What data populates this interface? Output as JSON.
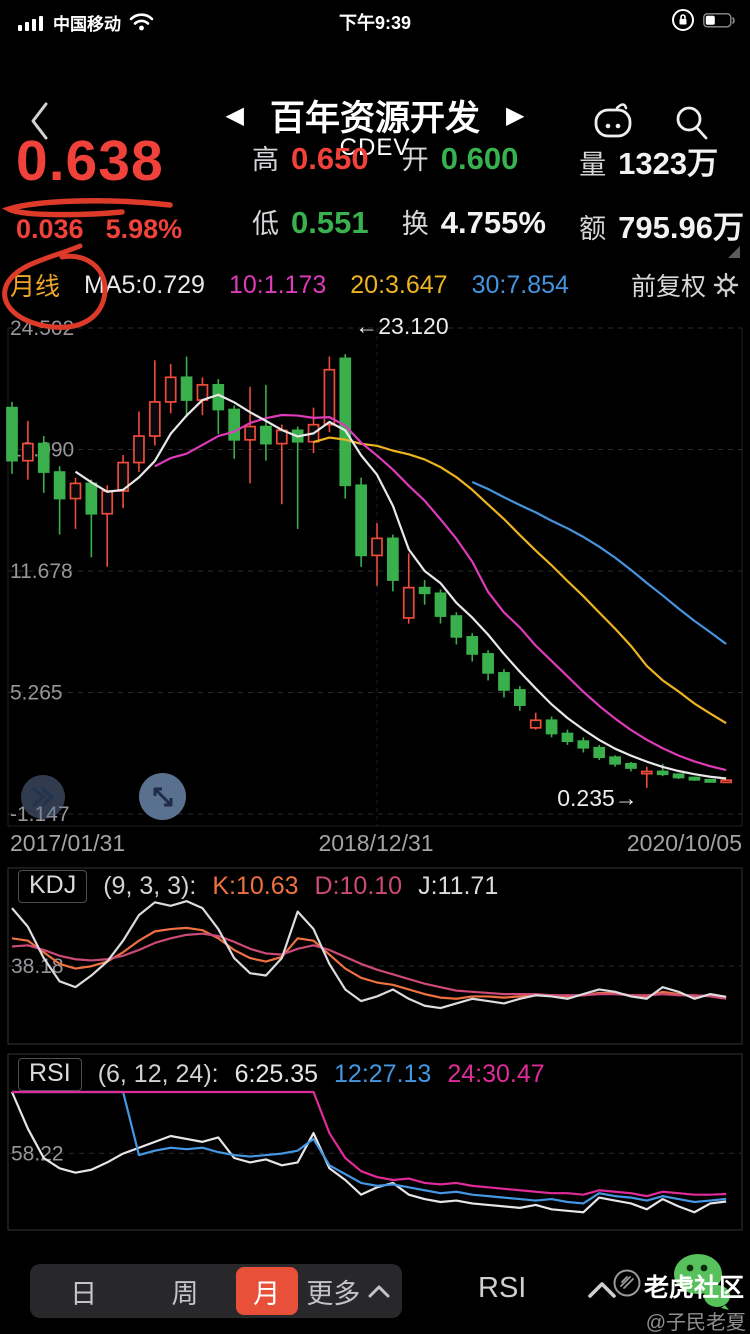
{
  "status_bar": {
    "carrier": "中国移动",
    "time": "下午9:39"
  },
  "nav": {
    "title": "百年资源开发",
    "symbol": "CDEV"
  },
  "quote": {
    "price": "0.638",
    "change_amount": "0.036",
    "change_percent": "5.98%",
    "stats": [
      {
        "label": "高",
        "value": "0.650",
        "tone": "red"
      },
      {
        "label": "开",
        "value": "0.600",
        "tone": "green"
      },
      {
        "label": "量",
        "value": "1323万",
        "tone": "white"
      },
      {
        "label": "低",
        "value": "0.551",
        "tone": "green"
      },
      {
        "label": "换",
        "value": "4.755%",
        "tone": "white"
      },
      {
        "label": "额",
        "value": "795.96万",
        "tone": "white"
      }
    ]
  },
  "chart_header": {
    "period": "月线",
    "ma5": "MA5:0.729",
    "ma10": "10:1.173",
    "ma20": "20:3.647",
    "ma30": "30:7.854",
    "adjust_mode": "前复权"
  },
  "chart_data": [
    {
      "type": "candlestick",
      "name": "monthly-price",
      "y_ticks": [
        "24.502",
        "18.090",
        "11.678",
        "5.265",
        "-1.147"
      ],
      "x_ticks": [
        "2017/01/31",
        "2018/12/31",
        "2020/10/05"
      ],
      "high_marker": "←23.120",
      "low_marker": "0.235→",
      "up_color": "#ef4b3a",
      "down_color": "#3ab04c",
      "ma_series": [
        {
          "period": 5,
          "color": "#e8e8ea"
        },
        {
          "period": 10,
          "color": "#dd3bba"
        },
        {
          "period": 20,
          "color": "#eeb321"
        },
        {
          "period": 30,
          "color": "#4494de"
        }
      ],
      "candles": [
        [
          20.3,
          20.6,
          16.8,
          17.5
        ],
        [
          17.5,
          19.6,
          16.5,
          18.4
        ],
        [
          18.4,
          18.8,
          15.8,
          16.9
        ],
        [
          16.9,
          17.2,
          13.6,
          15.5
        ],
        [
          15.5,
          16.6,
          13.9,
          16.3
        ],
        [
          16.3,
          16.5,
          12.4,
          14.7
        ],
        [
          14.7,
          16.2,
          11.9,
          15.9
        ],
        [
          15.9,
          17.8,
          15.0,
          17.4
        ],
        [
          17.4,
          20.1,
          16.9,
          18.8
        ],
        [
          18.8,
          22.8,
          18.3,
          20.6
        ],
        [
          20.6,
          22.6,
          20.0,
          21.9
        ],
        [
          21.9,
          23.0,
          19.8,
          20.7
        ],
        [
          20.7,
          21.9,
          19.9,
          21.5
        ],
        [
          21.5,
          21.8,
          18.9,
          20.2
        ],
        [
          20.2,
          20.4,
          17.6,
          18.6
        ],
        [
          18.6,
          21.4,
          16.3,
          19.3
        ],
        [
          19.3,
          21.5,
          17.5,
          18.4
        ],
        [
          18.4,
          19.4,
          15.2,
          19.1
        ],
        [
          19.1,
          19.3,
          13.9,
          18.5
        ],
        [
          18.5,
          20.3,
          17.9,
          19.4
        ],
        [
          19.4,
          23.0,
          19.0,
          22.3
        ],
        [
          22.9,
          23.12,
          15.5,
          16.2
        ],
        [
          16.2,
          16.6,
          11.9,
          12.5
        ],
        [
          12.5,
          14.2,
          10.9,
          13.4
        ],
        [
          13.4,
          13.6,
          10.6,
          11.2
        ],
        [
          9.2,
          12.6,
          8.9,
          10.8
        ],
        [
          10.8,
          11.2,
          9.9,
          10.5
        ],
        [
          10.5,
          10.7,
          8.9,
          9.3
        ],
        [
          9.3,
          9.5,
          7.8,
          8.2
        ],
        [
          8.2,
          8.4,
          6.9,
          7.3
        ],
        [
          7.3,
          7.5,
          5.9,
          6.3
        ],
        [
          6.3,
          6.5,
          5.0,
          5.4
        ],
        [
          5.4,
          5.6,
          4.3,
          4.6
        ],
        [
          3.4,
          4.2,
          3.3,
          3.8
        ],
        [
          3.8,
          4.0,
          2.9,
          3.1
        ],
        [
          3.1,
          3.3,
          2.5,
          2.7
        ],
        [
          2.7,
          2.9,
          2.1,
          2.35
        ],
        [
          2.35,
          2.5,
          1.7,
          1.85
        ],
        [
          1.85,
          1.95,
          1.35,
          1.5
        ],
        [
          1.5,
          1.6,
          1.1,
          1.28
        ],
        [
          1.0,
          1.35,
          0.235,
          1.1
        ],
        [
          1.1,
          1.5,
          0.85,
          0.95
        ],
        [
          0.95,
          1.0,
          0.7,
          0.78
        ],
        [
          0.78,
          0.82,
          0.6,
          0.66
        ],
        [
          0.66,
          0.7,
          0.54,
          0.6
        ],
        [
          0.6,
          0.65,
          0.551,
          0.638
        ]
      ]
    },
    {
      "type": "line",
      "name": "KDJ",
      "params": "(9, 3, 3):",
      "labels": [
        {
          "text": "K:10.63",
          "color": "#ee7140"
        },
        {
          "text": "D:10.10",
          "color": "#cb4a78"
        },
        {
          "text": "J:11.71",
          "color": "#dcdce0"
        }
      ],
      "gridline": 38.18,
      "grid_label": "38.18",
      "ylim": [
        -10,
        95
      ],
      "series": [
        {
          "name": "K",
          "color": "#ee7140",
          "values": [
            62,
            60,
            50,
            40,
            36,
            38,
            42,
            50,
            60,
            68,
            70,
            71,
            69,
            62,
            52,
            45,
            42,
            46,
            62,
            60,
            48,
            36,
            28,
            24,
            22,
            18,
            14,
            11,
            10,
            12,
            12,
            11,
            12,
            13,
            13,
            12,
            13,
            15,
            15,
            13,
            12,
            16,
            14,
            12,
            13,
            10.63
          ]
        },
        {
          "name": "D",
          "color": "#cb4a78",
          "values": [
            55,
            56,
            52,
            47,
            44,
            43,
            44,
            47,
            52,
            58,
            62,
            65,
            66,
            64,
            59,
            53,
            49,
            48,
            53,
            56,
            52,
            46,
            40,
            35,
            31,
            27,
            23,
            20,
            17,
            16,
            15,
            14,
            14,
            14,
            13,
            13,
            13,
            14,
            14,
            13,
            13,
            14,
            13,
            13,
            12,
            10.1
          ]
        },
        {
          "name": "J",
          "color": "#dcdce0",
          "values": [
            88,
            72,
            45,
            25,
            20,
            30,
            42,
            60,
            82,
            93,
            90,
            94,
            88,
            70,
            45,
            32,
            30,
            45,
            85,
            70,
            40,
            18,
            8,
            12,
            18,
            10,
            4,
            2,
            6,
            10,
            8,
            6,
            10,
            13,
            12,
            10,
            14,
            18,
            16,
            12,
            10,
            20,
            16,
            10,
            14,
            11.71
          ]
        }
      ]
    },
    {
      "type": "line",
      "name": "RSI",
      "params": "(6, 12, 24):",
      "labels": [
        {
          "text": "6:25.35",
          "color": "#e6e6ea"
        },
        {
          "text": "12:27.13",
          "color": "#4497e2"
        },
        {
          "text": "24:30.47",
          "color": "#e02b9a"
        }
      ],
      "gridline": 58.22,
      "grid_label": "58.22",
      "ylim": [
        10,
        100
      ],
      "series": [
        {
          "name": "RSI6",
          "color": "#e6e6ea",
          "values": [
            100,
            75,
            55,
            48,
            45,
            47,
            52,
            58,
            62,
            66,
            70,
            68,
            66,
            69,
            55,
            52,
            54,
            50,
            52,
            72,
            48,
            40,
            30,
            35,
            38,
            30,
            27,
            25,
            26,
            24,
            23,
            22,
            21,
            23,
            20,
            19,
            18,
            28,
            26,
            24,
            20,
            27,
            22,
            18,
            24,
            25.35
          ]
        },
        {
          "name": "RSI12",
          "color": "#4497e2",
          "values": [
            100,
            100,
            100,
            100,
            100,
            100,
            100,
            100,
            57,
            60,
            62,
            61,
            62,
            59,
            57,
            56,
            57,
            58,
            60,
            68,
            50,
            44,
            38,
            36,
            37,
            35,
            33,
            31,
            32,
            30,
            29,
            28,
            27,
            26,
            27,
            25,
            24,
            31,
            29,
            28,
            26,
            29,
            27,
            25,
            26,
            27.13
          ]
        },
        {
          "name": "RSI24",
          "color": "#e02b9a",
          "values": [
            100,
            100,
            100,
            100,
            100,
            100,
            100,
            100,
            100,
            100,
            100,
            100,
            100,
            100,
            100,
            100,
            100,
            100,
            100,
            100,
            72,
            55,
            46,
            42,
            40,
            41,
            38,
            37,
            38,
            36,
            35,
            34,
            33,
            32,
            31,
            31,
            30,
            33,
            32,
            31,
            29,
            32,
            31,
            30,
            30,
            30.47
          ]
        }
      ]
    }
  ],
  "toolbar": {
    "periods": [
      "日",
      "周",
      "月"
    ],
    "active_period": "月",
    "more_label": "更多",
    "pane_indicator": "RSI"
  },
  "watermark": {
    "community": "老虎社区",
    "user": "@子民老夏"
  },
  "annotations": {
    "color": "#dd3a2a",
    "circled_text": "月线",
    "underlined_value": "0.638"
  },
  "colors": {
    "up": "#f0423a",
    "down": "#38b14e",
    "period_accent": "#f0a52a",
    "tab_active_bg": "#e8503a",
    "white_value": "#f2f2f4"
  }
}
